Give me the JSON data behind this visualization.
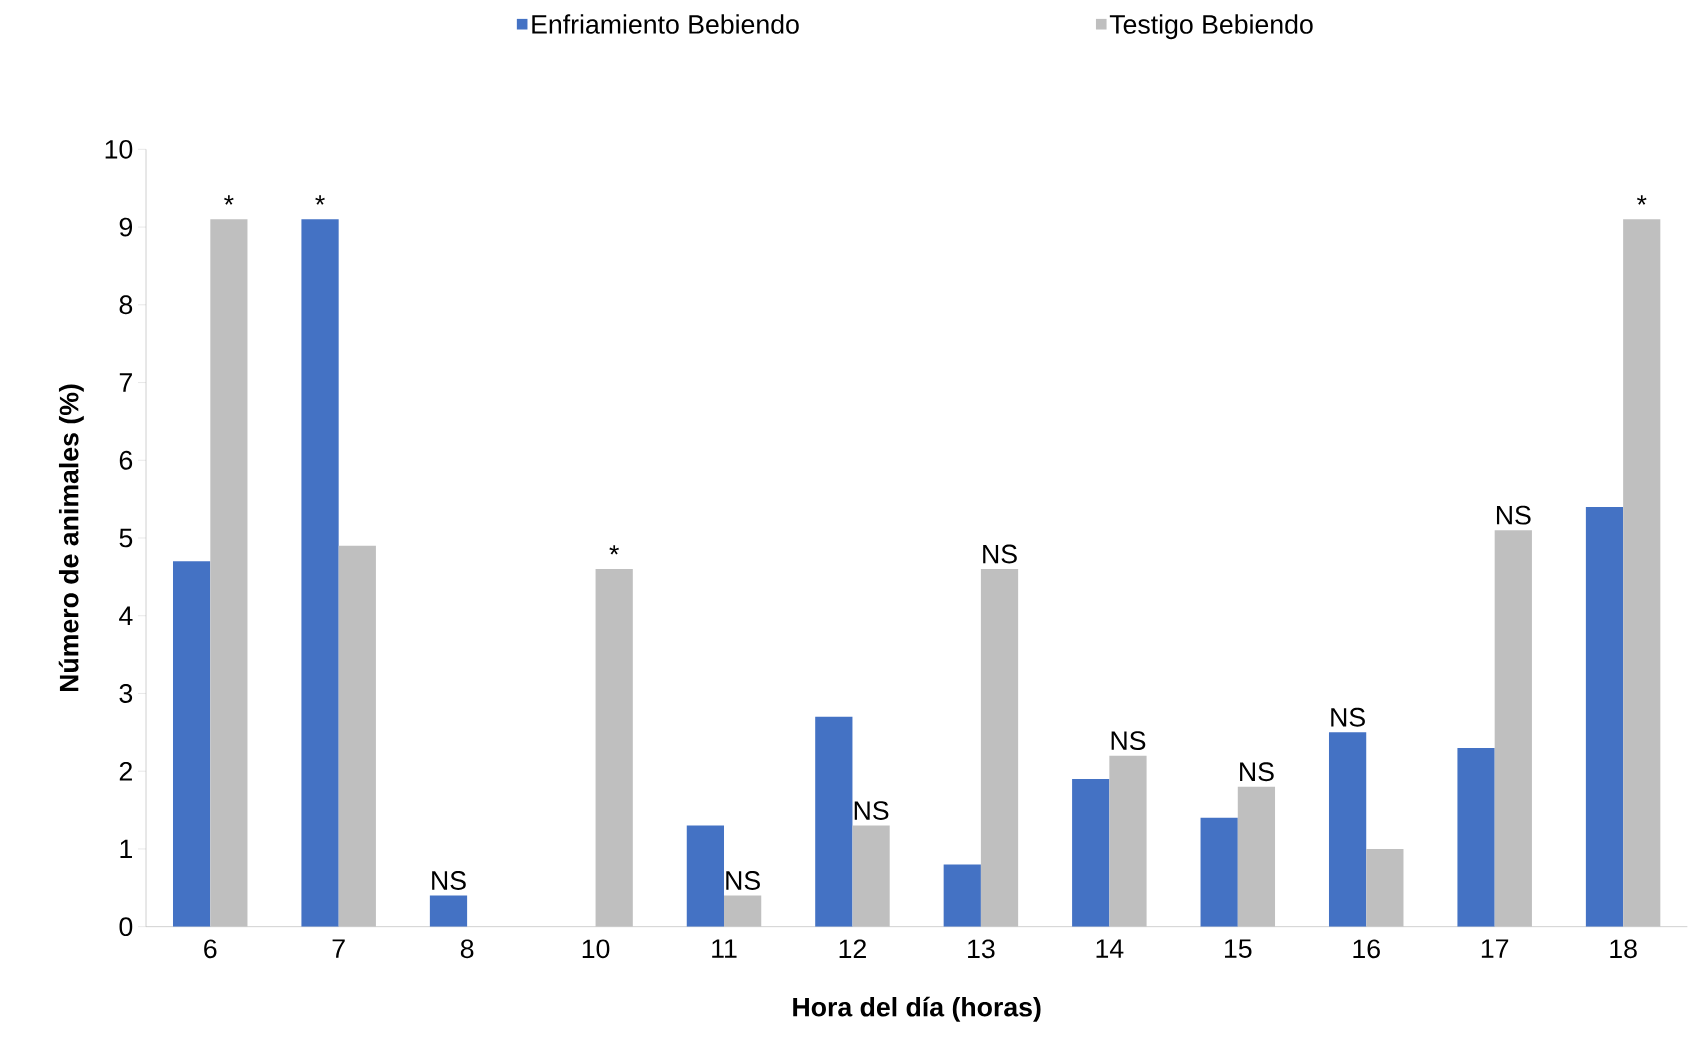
{
  "chart_data": {
    "type": "bar",
    "xlabel": "Hora del día (horas)",
    "ylabel": "Número de animales (%)",
    "categories": [
      "6",
      "7",
      "8",
      "10",
      "11",
      "12",
      "13",
      "14",
      "15",
      "16",
      "17",
      "18"
    ],
    "series": [
      {
        "name": "Enfriamiento Bebiendo",
        "color": "#4472c4",
        "values": [
          4.7,
          9.1,
          0.4,
          0,
          1.3,
          2.7,
          0.8,
          1.9,
          1.4,
          2.5,
          2.3,
          5.4
        ]
      },
      {
        "name": "Testigo Bebiendo",
        "color": "#bfbfbf",
        "values": [
          9.1,
          4.9,
          0,
          4.6,
          0.4,
          1.3,
          4.6,
          2.2,
          1.8,
          1.0,
          5.1,
          9.1
        ]
      }
    ],
    "ylim": [
      0,
      10
    ],
    "yticks": [
      0,
      1,
      2,
      3,
      4,
      5,
      6,
      7,
      8,
      9,
      10
    ],
    "grid": false,
    "legend": "top",
    "annotations": [
      {
        "text": "*",
        "x": "6",
        "y": 9.1
      },
      {
        "text": "*",
        "x": "7",
        "y": 9.1
      },
      {
        "text": "NS",
        "x": "8",
        "y": 0.4
      },
      {
        "text": "*",
        "x": "10",
        "y": 4.6
      },
      {
        "text": "NS",
        "x": "11",
        "y": 0.4
      },
      {
        "text": "NS",
        "x": "12",
        "y": 1.3
      },
      {
        "text": "NS",
        "x": "13",
        "y": 4.6
      },
      {
        "text": "NS",
        "x": "14",
        "y": 2.2
      },
      {
        "text": "NS",
        "x": "15",
        "y": 1.8
      },
      {
        "text": "NS",
        "x": "16",
        "y": 2.5
      },
      {
        "text": "NS",
        "x": "17",
        "y": 5.1
      },
      {
        "text": "*",
        "x": "18",
        "y": 9.1
      }
    ]
  }
}
